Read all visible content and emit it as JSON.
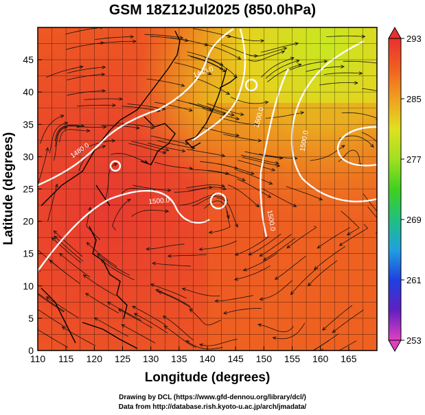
{
  "title": "GSM 18Z12Jul2025 (850.0hPa)",
  "x_axis": {
    "label": "Longitude (degrees)",
    "range": [
      110,
      170
    ],
    "ticks": [
      "110",
      "115",
      "120",
      "125",
      "130",
      "135",
      "140",
      "145",
      "150",
      "155",
      "160",
      "165"
    ]
  },
  "y_axis": {
    "label": "Latitude  (degrees)",
    "range": [
      0,
      50
    ],
    "ticks": [
      "0",
      "5",
      "10",
      "15",
      "20",
      "25",
      "30",
      "35",
      "40",
      "45"
    ]
  },
  "colorbar": {
    "ticks": [
      "253",
      "261",
      "269",
      "277",
      "285",
      "293"
    ],
    "range": [
      253,
      293
    ],
    "colors": [
      "#e040c0",
      "#6020c0",
      "#2040e0",
      "#20a0e0",
      "#20c080",
      "#40d020",
      "#a0e020",
      "#e0e020",
      "#f0a020",
      "#f06020",
      "#e83030"
    ]
  },
  "contours": [
    {
      "label": "1440.0"
    },
    {
      "label": "1480.0"
    },
    {
      "label": "1500.0"
    },
    {
      "label": "1500.0"
    },
    {
      "label": "1500.0"
    },
    {
      "label": "1500.0"
    }
  ],
  "credits": [
    "Drawing by DCL (https://www.gfd-dennou.org/library/dcl/)",
    "Data from http://database.rish.kyoto-u.ac.jp/arch/jmadata/"
  ]
}
